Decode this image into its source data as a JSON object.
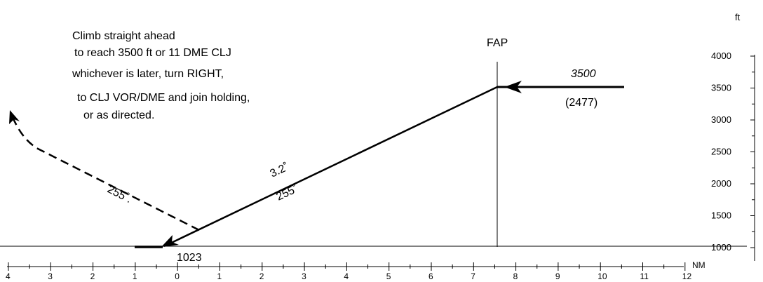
{
  "missed_approach_instructions": [
    "Climb straight ahead",
    "to reach 3500 ft or 11 DME CLJ",
    "whichever is later, turn RIGHT,",
    "to CLJ VOR/DME and join holding,",
    "or as directed."
  ],
  "fap_label": "FAP",
  "intermediate_altitude": "3500",
  "intermediate_height": "(2477)",
  "glide_path_angle": "3.2˚",
  "final_track": "255˚",
  "missed_track": "255˚.",
  "threshold_elevation": "1023",
  "distance_unit": "NM",
  "altitude_unit": "ft",
  "distance_ticks": [
    "4",
    "3",
    "2",
    "1",
    "0",
    "1",
    "2",
    "3",
    "4",
    "5",
    "6",
    "7",
    "8",
    "9",
    "10",
    "11",
    "12"
  ],
  "altitude_ticks": [
    "4000",
    "3500",
    "3000",
    "2500",
    "2000",
    "1500",
    "1000"
  ]
}
